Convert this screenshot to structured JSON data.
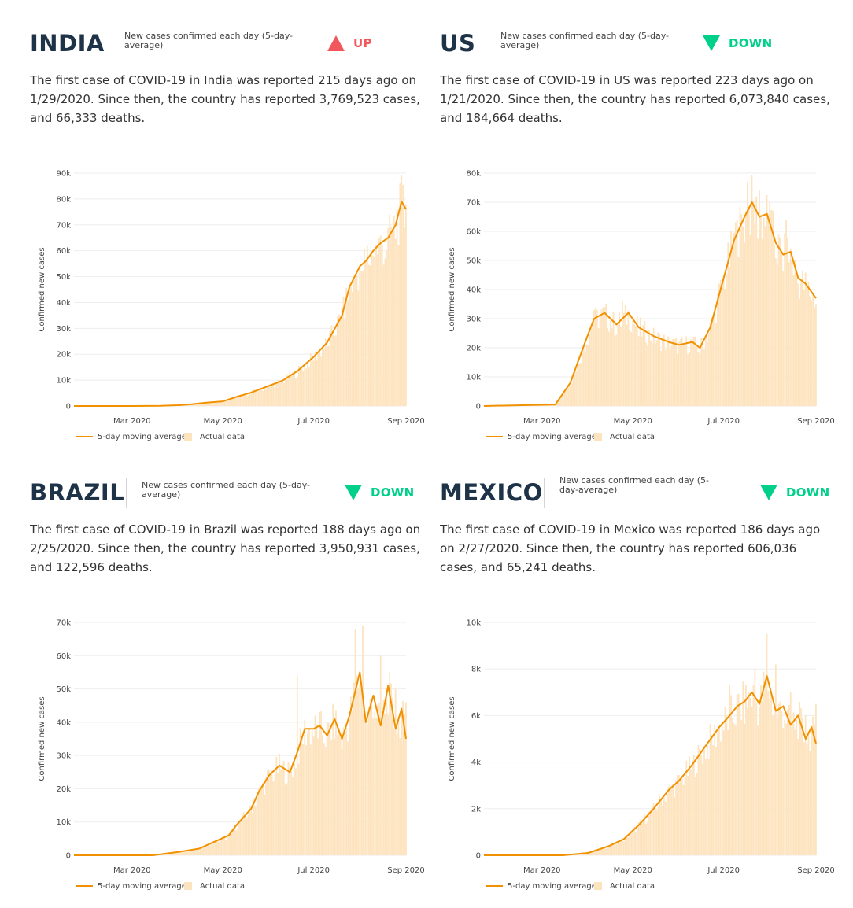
{
  "legend": {
    "line_label": "5-day moving average",
    "bar_label": "Actual data"
  },
  "colors": {
    "line": "#f29100",
    "bar": "#fde3be",
    "grid": "#eeeeee",
    "axis": "#444444",
    "up": "#f2575e",
    "down": "#00d08a",
    "title": "#1e3347"
  },
  "panels": [
    {
      "country": "INDIA",
      "subtitle": "New cases confirmed each day (5-day-average)",
      "trend": "UP",
      "trend_icon": "triangle-up-icon",
      "summary": "The first case of COVID-19 in India was reported 215 days ago on 1/29/2020. Since then, the country has reported 3,769,523 cases, and 66,333 deaths."
    },
    {
      "country": "US",
      "subtitle": "New cases confirmed each day (5-day-average)",
      "trend": "DOWN",
      "trend_icon": "triangle-down-icon",
      "summary": "The first case of COVID-19 in US was reported 223 days ago on 1/21/2020. Since then, the country has reported 6,073,840 cases, and 184,664 deaths."
    },
    {
      "country": "BRAZIL",
      "subtitle": "New cases confirmed each day (5-day-average)",
      "trend": "DOWN",
      "trend_icon": "triangle-down-icon",
      "summary": "The first case of COVID-19 in Brazil was reported 188 days ago on 2/25/2020. Since then, the country has reported 3,950,931 cases, and 122,596 deaths."
    },
    {
      "country": "MEXICO",
      "subtitle": "New cases confirmed each day (5-day-average)",
      "trend": "DOWN",
      "trend_icon": "triangle-down-icon",
      "summary": "The first case of COVID-19 in Mexico was reported 186 days ago on 2/27/2020. Since then, the country has reported 606,036 cases, and 65,241 deaths."
    }
  ],
  "chart_data": [
    {
      "type": "line",
      "country": "INDIA",
      "ylabel": "Confirmed new cases",
      "x_ticks": [
        "Mar 2020",
        "May 2020",
        "Jul 2020",
        "Sep 2020"
      ],
      "y_ticks": [
        "0",
        "10k",
        "20k",
        "30k",
        "40k",
        "50k",
        "60k",
        "70k",
        "80k",
        "90k"
      ],
      "ylim": [
        0,
        90000
      ],
      "xlim": [
        "2020-01-22",
        "2020-09-01"
      ],
      "series": [
        {
          "name": "5-day moving average",
          "kind": "line",
          "points": [
            [
              "2020-01-22",
              0
            ],
            [
              "2020-03-01",
              0
            ],
            [
              "2020-03-20",
              100
            ],
            [
              "2020-04-01",
              300
            ],
            [
              "2020-04-10",
              700
            ],
            [
              "2020-04-20",
              1300
            ],
            [
              "2020-05-01",
              1800
            ],
            [
              "2020-05-10",
              3500
            ],
            [
              "2020-05-20",
              5200
            ],
            [
              "2020-06-01",
              7800
            ],
            [
              "2020-06-10",
              9800
            ],
            [
              "2020-06-20",
              13500
            ],
            [
              "2020-07-01",
              19000
            ],
            [
              "2020-07-10",
              24500
            ],
            [
              "2020-07-20",
              35000
            ],
            [
              "2020-07-25",
              46000
            ],
            [
              "2020-08-01",
              54000
            ],
            [
              "2020-08-05",
              56000
            ],
            [
              "2020-08-10",
              60000
            ],
            [
              "2020-08-15",
              63000
            ],
            [
              "2020-08-20",
              65000
            ],
            [
              "2020-08-25",
              70000
            ],
            [
              "2020-08-29",
              79000
            ],
            [
              "2020-09-01",
              76000
            ]
          ]
        },
        {
          "name": "Actual data",
          "kind": "bar",
          "points": [
            [
              "2020-07-10",
              23000
            ],
            [
              "2020-07-20",
              38000
            ],
            [
              "2020-07-28",
              50000
            ],
            [
              "2020-08-02",
              52000
            ],
            [
              "2020-08-06",
              62000
            ],
            [
              "2020-08-10",
              58000
            ],
            [
              "2020-08-14",
              65000
            ],
            [
              "2020-08-18",
              57000
            ],
            [
              "2020-08-22",
              69000
            ],
            [
              "2020-08-26",
              76000
            ],
            [
              "2020-08-28",
              86000
            ],
            [
              "2020-08-31",
              69000
            ],
            [
              "2020-09-01",
              78000
            ]
          ]
        }
      ]
    },
    {
      "type": "line",
      "country": "US",
      "ylabel": "Confirmed new cases",
      "x_ticks": [
        "Mar 2020",
        "May 2020",
        "Jul 2020",
        "Sep 2020"
      ],
      "y_ticks": [
        "0",
        "10k",
        "20k",
        "30k",
        "40k",
        "50k",
        "60k",
        "70k",
        "80k"
      ],
      "ylim": [
        0,
        80000
      ],
      "xlim": [
        "2020-01-22",
        "2020-09-01"
      ],
      "series": [
        {
          "name": "5-day moving average",
          "kind": "line",
          "points": [
            [
              "2020-01-22",
              0
            ],
            [
              "2020-03-10",
              500
            ],
            [
              "2020-03-20",
              8000
            ],
            [
              "2020-03-30",
              22000
            ],
            [
              "2020-04-05",
              30000
            ],
            [
              "2020-04-12",
              32000
            ],
            [
              "2020-04-20",
              28000
            ],
            [
              "2020-04-28",
              32000
            ],
            [
              "2020-05-05",
              27000
            ],
            [
              "2020-05-15",
              24000
            ],
            [
              "2020-05-25",
              22000
            ],
            [
              "2020-06-01",
              21000
            ],
            [
              "2020-06-10",
              22000
            ],
            [
              "2020-06-15",
              20000
            ],
            [
              "2020-06-22",
              27000
            ],
            [
              "2020-07-01",
              44000
            ],
            [
              "2020-07-08",
              57000
            ],
            [
              "2020-07-15",
              65000
            ],
            [
              "2020-07-20",
              70000
            ],
            [
              "2020-07-25",
              65000
            ],
            [
              "2020-07-30",
              66000
            ],
            [
              "2020-08-05",
              56000
            ],
            [
              "2020-08-10",
              52000
            ],
            [
              "2020-08-15",
              53000
            ],
            [
              "2020-08-20",
              44000
            ],
            [
              "2020-08-25",
              42000
            ],
            [
              "2020-09-01",
              37000
            ]
          ]
        },
        {
          "name": "Actual data",
          "kind": "bar",
          "points": [
            [
              "2020-04-05",
              33000
            ],
            [
              "2020-04-24",
              36000
            ],
            [
              "2020-05-05",
              24000
            ],
            [
              "2020-06-15",
              18000
            ],
            [
              "2020-07-10",
              64000
            ],
            [
              "2020-07-17",
              77000
            ],
            [
              "2020-07-25",
              74000
            ],
            [
              "2020-08-01",
              70000
            ],
            [
              "2020-08-12",
              64000
            ],
            [
              "2020-08-20",
              42000
            ],
            [
              "2020-09-01",
              35000
            ]
          ]
        }
      ]
    },
    {
      "type": "line",
      "country": "BRAZIL",
      "ylabel": "Confirmed new cases",
      "x_ticks": [
        "Mar 2020",
        "May 2020",
        "Jul 2020",
        "Sep 2020"
      ],
      "y_ticks": [
        "0",
        "10k",
        "20k",
        "30k",
        "40k",
        "50k",
        "60k",
        "70k"
      ],
      "ylim": [
        0,
        70000
      ],
      "xlim": [
        "2020-01-22",
        "2020-09-01"
      ],
      "series": [
        {
          "name": "5-day moving average",
          "kind": "line",
          "points": [
            [
              "2020-01-22",
              0
            ],
            [
              "2020-03-15",
              0
            ],
            [
              "2020-04-01",
              1000
            ],
            [
              "2020-04-15",
              2000
            ],
            [
              "2020-04-25",
              4000
            ],
            [
              "2020-05-05",
              6000
            ],
            [
              "2020-05-10",
              9000
            ],
            [
              "2020-05-20",
              14000
            ],
            [
              "2020-05-25",
              19000
            ],
            [
              "2020-06-01",
              24000
            ],
            [
              "2020-06-08",
              27000
            ],
            [
              "2020-06-15",
              25000
            ],
            [
              "2020-06-20",
              31000
            ],
            [
              "2020-06-25",
              38000
            ],
            [
              "2020-07-01",
              38000
            ],
            [
              "2020-07-05",
              39000
            ],
            [
              "2020-07-10",
              36000
            ],
            [
              "2020-07-15",
              41000
            ],
            [
              "2020-07-20",
              35000
            ],
            [
              "2020-07-25",
              42000
            ],
            [
              "2020-08-01",
              55000
            ],
            [
              "2020-08-05",
              40000
            ],
            [
              "2020-08-10",
              48000
            ],
            [
              "2020-08-15",
              39000
            ],
            [
              "2020-08-20",
              51000
            ],
            [
              "2020-08-25",
              38000
            ],
            [
              "2020-08-29",
              44000
            ],
            [
              "2020-09-01",
              35000
            ]
          ]
        },
        {
          "name": "Actual data",
          "kind": "bar",
          "points": [
            [
              "2020-06-20",
              54000
            ],
            [
              "2020-07-10",
              40000
            ],
            [
              "2020-07-29",
              68000
            ],
            [
              "2020-08-03",
              69000
            ],
            [
              "2020-08-15",
              60000
            ],
            [
              "2020-08-25",
              50000
            ],
            [
              "2020-09-01",
              46000
            ]
          ]
        }
      ]
    },
    {
      "type": "line",
      "country": "MEXICO",
      "ylabel": "Confirmed new cases",
      "x_ticks": [
        "Mar 2020",
        "May 2020",
        "Jul 2020",
        "Sep 2020"
      ],
      "y_ticks": [
        "0",
        "2k",
        "4k",
        "6k",
        "8k",
        "10k"
      ],
      "ylim": [
        0,
        10000
      ],
      "xlim": [
        "2020-01-22",
        "2020-09-01"
      ],
      "series": [
        {
          "name": "5-day moving average",
          "kind": "line",
          "points": [
            [
              "2020-01-22",
              0
            ],
            [
              "2020-03-15",
              0
            ],
            [
              "2020-04-01",
              100
            ],
            [
              "2020-04-15",
              400
            ],
            [
              "2020-04-25",
              700
            ],
            [
              "2020-05-05",
              1300
            ],
            [
              "2020-05-15",
              2000
            ],
            [
              "2020-05-25",
              2800
            ],
            [
              "2020-06-01",
              3200
            ],
            [
              "2020-06-10",
              3900
            ],
            [
              "2020-06-20",
              4800
            ],
            [
              "2020-06-28",
              5500
            ],
            [
              "2020-07-05",
              6000
            ],
            [
              "2020-07-10",
              6400
            ],
            [
              "2020-07-15",
              6600
            ],
            [
              "2020-07-20",
              7000
            ],
            [
              "2020-07-25",
              6500
            ],
            [
              "2020-07-30",
              7700
            ],
            [
              "2020-08-05",
              6200
            ],
            [
              "2020-08-10",
              6400
            ],
            [
              "2020-08-15",
              5600
            ],
            [
              "2020-08-20",
              6000
            ],
            [
              "2020-08-25",
              5000
            ],
            [
              "2020-08-29",
              5500
            ],
            [
              "2020-09-01",
              4800
            ]
          ]
        },
        {
          "name": "Actual data",
          "kind": "bar",
          "points": [
            [
              "2020-07-05",
              7300
            ],
            [
              "2020-07-22",
              8000
            ],
            [
              "2020-07-30",
              9500
            ],
            [
              "2020-08-05",
              8200
            ],
            [
              "2020-08-15",
              7000
            ],
            [
              "2020-08-25",
              6000
            ],
            [
              "2020-09-01",
              6500
            ]
          ]
        }
      ]
    }
  ]
}
